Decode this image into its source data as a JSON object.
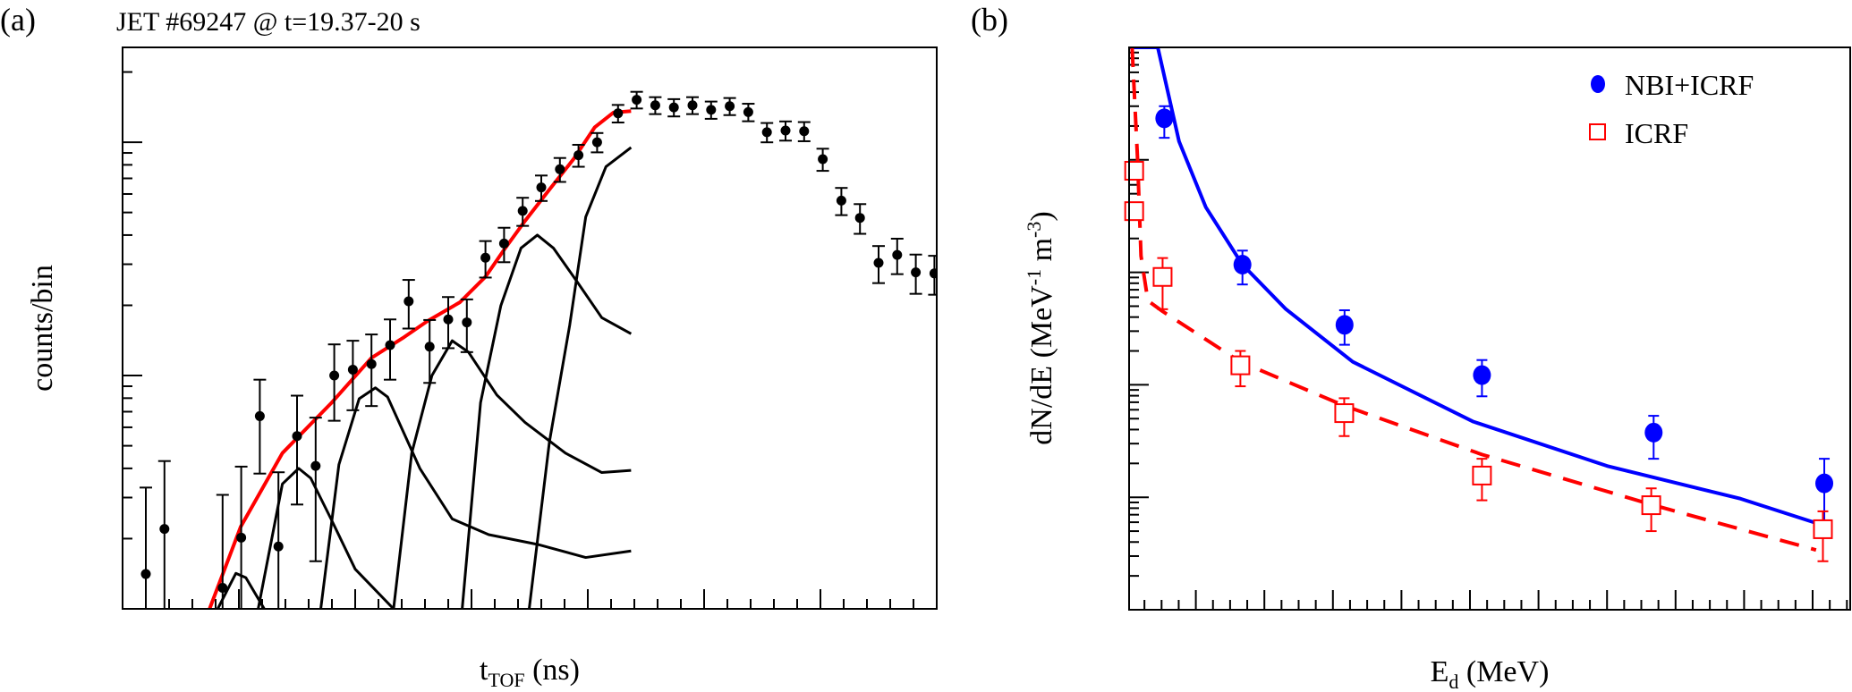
{
  "colors": {
    "black": "#000000",
    "fit": "#ff0000",
    "nbi": "#0000ff",
    "icrf": "#ff0000"
  },
  "chart_data": [
    {
      "type": "scatter",
      "panel_label": "(a)",
      "title": "JET #69247 @ t=19.37-20 s",
      "xlabel": {
        "main": "t",
        "sub": "TOF",
        "rest": " (ns)"
      },
      "ylabel": "counts/bin",
      "xlim": [
        40,
        75
      ],
      "ylim": [
        1,
        255
      ],
      "yscale": "log",
      "xticks": [
        "40",
        "45",
        "50",
        "55",
        "60",
        "65",
        "70",
        "75"
      ],
      "yticks": [
        {
          "value": 1,
          "base": "1",
          "exp": ""
        },
        {
          "value": 10,
          "base": "10",
          "exp": ""
        },
        {
          "value": 100,
          "base": "10",
          "exp": "2"
        }
      ],
      "points": {
        "x": [
          41.0,
          41.8,
          44.3,
          45.1,
          45.9,
          46.7,
          47.5,
          48.3,
          49.1,
          49.9,
          50.7,
          51.5,
          52.3,
          53.2,
          54.0,
          54.8,
          55.6,
          56.4,
          57.2,
          58.0,
          58.8,
          59.6,
          60.4,
          61.3,
          62.1,
          62.9,
          63.7,
          64.5,
          65.3,
          66.1,
          66.9,
          67.7,
          68.5,
          69.3,
          70.1,
          70.9,
          71.7,
          72.5,
          73.3,
          74.1,
          74.9
        ],
        "y": [
          1.41,
          2.2,
          1.23,
          2.02,
          6.7,
          1.85,
          5.5,
          4.1,
          10.0,
          10.6,
          11.2,
          13.5,
          20.8,
          13.3,
          17.4,
          16.9,
          32,
          36.8,
          50.8,
          64,
          76.6,
          88,
          100,
          133,
          152,
          144,
          141,
          144,
          137.7,
          142.7,
          134.6,
          110.4,
          112.2,
          111.5,
          84.6,
          56.2,
          47.4,
          30.4,
          32.9,
          27.7,
          27.4
        ],
        "yerr": [
          1.9,
          2.1,
          1.85,
          2.05,
          2.9,
          2.0,
          2.7,
          2.5,
          3.6,
          3.5,
          3.8,
          3.9,
          4.9,
          4.0,
          4.3,
          4.3,
          5.7,
          6.2,
          7.0,
          8.0,
          9.0,
          9.5,
          9.5,
          11.5,
          12.5,
          12.0,
          12.0,
          12.0,
          11.7,
          12.0,
          11.6,
          10.5,
          10.6,
          10.5,
          9.2,
          7.5,
          6.9,
          5.5,
          5.7,
          5.3,
          5.2
        ]
      },
      "fit_curve": {
        "name": "total fit",
        "x": [
          43.74,
          45.08,
          46.87,
          48.96,
          50.7,
          52.1,
          53.1,
          54.5,
          55.6,
          56.4,
          57.3,
          58.35,
          59.4,
          60.3,
          61.1,
          61.86
        ],
        "y": [
          1,
          2.25,
          4.65,
          7.6,
          11.9,
          14.6,
          17.1,
          20.6,
          26.5,
          34.6,
          46,
          62.7,
          85,
          116,
          134,
          136
        ]
      },
      "components": [
        {
          "x": [
            44.09,
            44.87,
            45.3,
            46.09
          ],
          "y": [
            1,
            1.42,
            1.36,
            1
          ]
        },
        {
          "x": [
            45.83,
            46.87,
            47.57,
            48.09,
            48.96,
            50.0,
            51.65
          ],
          "y": [
            1,
            3.43,
            4.0,
            3.63,
            2.43,
            1.48,
            1
          ]
        },
        {
          "x": [
            48.52,
            49.3,
            50.17,
            50.87,
            51.39,
            52.78,
            54.17,
            55.74,
            57.83,
            59.91,
            61.86
          ],
          "y": [
            1,
            4.15,
            7.95,
            8.86,
            8.1,
            4.0,
            2.43,
            2.08,
            1.89,
            1.66,
            1.77
          ]
        },
        {
          "x": [
            51.65,
            52.43,
            53.3,
            54.17,
            54.87,
            56.09,
            57.3,
            59.04,
            60.6,
            61.86
          ],
          "y": [
            1,
            4.65,
            10.0,
            14.1,
            12.6,
            8.25,
            6.3,
            4.65,
            3.84,
            3.92
          ]
        },
        {
          "x": [
            54.6,
            55.39,
            56.26,
            57.13,
            57.83,
            58.52,
            59.57,
            60.6,
            61.86
          ],
          "y": [
            1,
            7.66,
            19.9,
            35.2,
            40,
            35.2,
            25,
            17.7,
            15.1
          ]
        },
        {
          "x": [
            57.48,
            58.35,
            59.22,
            59.91,
            60.78,
            61.86
          ],
          "y": [
            1,
            5.2,
            16.4,
            47.8,
            78.6,
            95
          ]
        }
      ]
    },
    {
      "type": "scatter",
      "panel_label": "(b)",
      "xlabel": {
        "main": "E",
        "sub": "d",
        "rest": " (MeV)"
      },
      "ylabel": {
        "main": "dN/dE (MeV",
        "exp1": "-1",
        "mid": " m",
        "exp2": "-3",
        "end": ")"
      },
      "xlim": [
        0,
        2.11
      ],
      "ylim": [
        100000000000000.0,
        1e+19
      ],
      "yscale": "log",
      "xticks": [
        "0.2",
        "0.4",
        "0.6",
        "0.8",
        "1",
        "1.2",
        "1.4",
        "1.6",
        "1.8",
        "2"
      ],
      "yticks": [
        {
          "value": 1000000000000000.0,
          "base": "10",
          "exp": "15"
        },
        {
          "value": 1e+16,
          "base": "10",
          "exp": "16"
        },
        {
          "value": 1e+17,
          "base": "10",
          "exp": "17"
        },
        {
          "value": 1e+18,
          "base": "10",
          "exp": "18"
        },
        {
          "value": 1e+19,
          "base": "10",
          "exp": "19"
        }
      ],
      "legend": {
        "position": "top-right",
        "entries": [
          "NBI+ICRF",
          "ICRF"
        ]
      },
      "series": [
        {
          "name": "NBI+ICRF",
          "marker": "filled-circle",
          "x": [
            0.108,
            0.336,
            0.634,
            1.035,
            1.536,
            2.034
          ],
          "y": [
            2.34e+18,
            1.17e+17,
            3.41e+16,
            1.22e+16,
            3760000000000000.0,
            1330000000000000.0
          ],
          "ylo": [
            1.57e+18,
            7.8e+16,
            2.27e+16,
            7900000000000000.0,
            2200000000000000.0,
            600000000000000.0
          ],
          "yhi": [
            3e+18,
            1.56e+17,
            4.6e+16,
            1.66e+16,
            5300000000000000.0,
            2200000000000000.0
          ],
          "curve": {
            "style": "solid",
            "x": [
              0.0,
              0.0,
              0.089,
              0.151,
              0.229,
              0.336,
              0.463,
              0.658,
              1.01,
              1.4,
              1.79,
              2.01
            ],
            "y": [
              1.3e+17,
              1e+19,
              1e+19,
              1.46e+18,
              3.8e+17,
              1.17e+17,
              4.7e+16,
              1.6e+16,
              4700000000000000.0,
              1900000000000000.0,
              970000000000000.0,
              590000000000000.0
            ]
          }
        },
        {
          "name": "ICRF",
          "marker": "open-square",
          "x": [
            0.02,
            0.02,
            0.103,
            0.33,
            0.633,
            1.035,
            1.529,
            2.03
          ],
          "y": [
            8e+17,
            3.5e+17,
            9.1e+16,
            1.49e+16,
            5600000000000000.0,
            1560000000000000.0,
            850000000000000.0,
            520000000000000.0
          ],
          "ylo": [
            8e+17,
            3.5e+17,
            4.7e+16,
            9700000000000000.0,
            3500000000000000.0,
            940000000000000.0,
            500000000000000.0,
            270000000000000.0
          ],
          "yhi": [
            8e+17,
            3.5e+17,
            1.34e+17,
            2e+16,
            7600000000000000.0,
            2200000000000000.0,
            1200000000000000.0,
            750000000000000.0
          ],
          "curve": {
            "style": "dashed",
            "x": [
              0.014,
              0.03,
              0.04,
              0.06,
              0.103,
              0.33,
              0.634,
              1.035,
              1.536,
              2.01
            ],
            "y": [
              1e+19,
              1e+18,
              1.4e+17,
              5.6e+16,
              4.5e+16,
              1.6e+16,
              6500000000000000.0,
              2400000000000000.0,
              850000000000000.0,
              340000000000000.0
            ]
          }
        }
      ]
    }
  ]
}
